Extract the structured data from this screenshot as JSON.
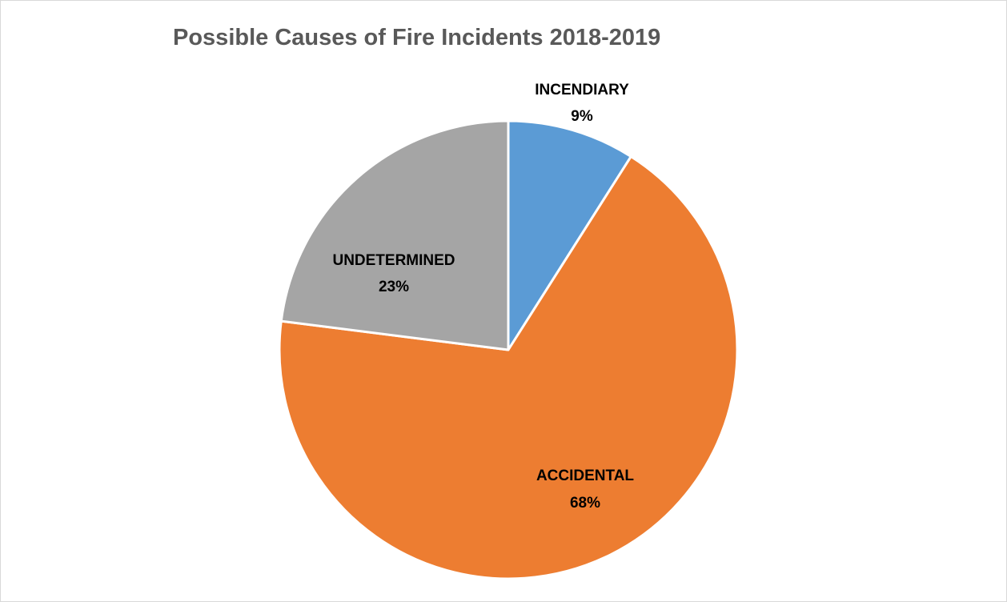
{
  "chart_data": {
    "type": "pie",
    "title": "Possible Causes of Fire Incidents 2018-2019",
    "slices": [
      {
        "label": "INCENDIARY",
        "value": 9,
        "display": "9%",
        "color": "#5b9bd5"
      },
      {
        "label": "ACCIDENTAL",
        "value": 68,
        "display": "68%",
        "color": "#ed7d31"
      },
      {
        "label": "UNDETERMINED",
        "value": 23,
        "display": "23%",
        "color": "#a5a5a5"
      }
    ],
    "start_angle": "12 o'clock",
    "direction": "clockwise",
    "legend": "none",
    "data_labels": "category name and percentage"
  }
}
